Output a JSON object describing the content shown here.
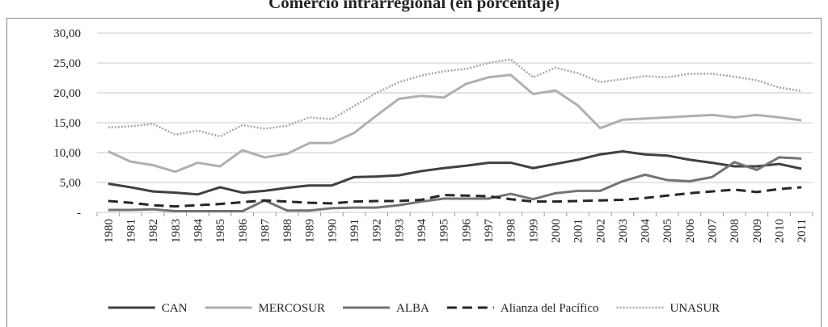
{
  "chart_data": {
    "type": "line",
    "title": "Comercio intrarregional (en porcentaje)",
    "categories": [
      "1980",
      "1981",
      "1982",
      "1983",
      "1984",
      "1985",
      "1986",
      "1987",
      "1988",
      "1989",
      "1990",
      "1991",
      "1992",
      "1993",
      "1994",
      "1995",
      "1996",
      "1997",
      "1998",
      "1999",
      "2000",
      "2001",
      "2002",
      "2003",
      "2004",
      "2005",
      "2006",
      "2007",
      "2008",
      "2009",
      "2010",
      "2011"
    ],
    "ylim": [
      0,
      30
    ],
    "yticks": [
      {
        "value": 0,
        "label": "-"
      },
      {
        "value": 5,
        "label": "5,00"
      },
      {
        "value": 10,
        "label": "10,00"
      },
      {
        "value": 15,
        "label": "15,00"
      },
      {
        "value": 20,
        "label": "20,00"
      },
      {
        "value": 25,
        "label": "25,00"
      },
      {
        "value": 30,
        "label": "30,00"
      }
    ],
    "grid": true,
    "legend": "bottom",
    "series": [
      {
        "name": "CAN",
        "color": "#404040",
        "dash": "solid",
        "values": [
          4.8,
          4.2,
          3.5,
          3.3,
          3.0,
          4.2,
          3.3,
          3.6,
          4.1,
          4.5,
          4.5,
          5.9,
          6.0,
          6.2,
          6.9,
          7.4,
          7.8,
          8.3,
          8.3,
          7.4,
          8.1,
          8.8,
          9.7,
          10.2,
          9.7,
          9.5,
          8.8,
          8.3,
          7.7,
          7.7,
          8.1,
          7.3
        ]
      },
      {
        "name": "MERCOSUR",
        "color": "#b0b0b0",
        "dash": "solid",
        "values": [
          10.2,
          8.5,
          7.9,
          6.8,
          8.3,
          7.7,
          10.4,
          9.2,
          9.8,
          11.6,
          11.6,
          13.3,
          16.2,
          19.0,
          19.5,
          19.2,
          21.5,
          22.6,
          23.0,
          19.8,
          20.4,
          17.9,
          14.1,
          15.5,
          15.7,
          15.9,
          16.1,
          16.3,
          15.9,
          16.3,
          15.9,
          15.4
        ]
      },
      {
        "name": "ALBA",
        "color": "#737373",
        "dash": "solid",
        "values": [
          0.4,
          0.4,
          0.5,
          0.2,
          0.2,
          0.2,
          0.2,
          2.0,
          0.3,
          0.3,
          0.7,
          0.8,
          0.8,
          1.2,
          1.8,
          2.3,
          2.3,
          2.3,
          3.1,
          2.2,
          3.2,
          3.6,
          3.6,
          5.2,
          6.3,
          5.4,
          5.2,
          5.9,
          8.4,
          7.1,
          9.2,
          9.0
        ]
      },
      {
        "name": "Alianza del Pacífico",
        "color": "#262626",
        "dash": "dashed",
        "values": [
          1.9,
          1.6,
          1.2,
          1.0,
          1.2,
          1.4,
          1.7,
          2.0,
          1.8,
          1.6,
          1.5,
          1.8,
          1.9,
          1.9,
          2.1,
          2.9,
          2.8,
          2.7,
          2.2,
          1.8,
          1.8,
          1.9,
          2.0,
          2.1,
          2.4,
          2.8,
          3.2,
          3.5,
          3.8,
          3.4,
          3.9,
          4.2
        ]
      },
      {
        "name": "UNASUR",
        "color": "#a6a6a6",
        "dash": "dotted",
        "values": [
          14.2,
          14.4,
          14.8,
          13.0,
          13.7,
          12.7,
          14.6,
          14.0,
          14.5,
          15.9,
          15.6,
          17.8,
          20.0,
          21.8,
          22.9,
          23.6,
          24.0,
          25.0,
          25.6,
          22.6,
          24.2,
          23.3,
          21.8,
          22.3,
          22.8,
          22.6,
          23.2,
          23.2,
          22.7,
          22.1,
          20.9,
          20.3
        ]
      }
    ]
  }
}
